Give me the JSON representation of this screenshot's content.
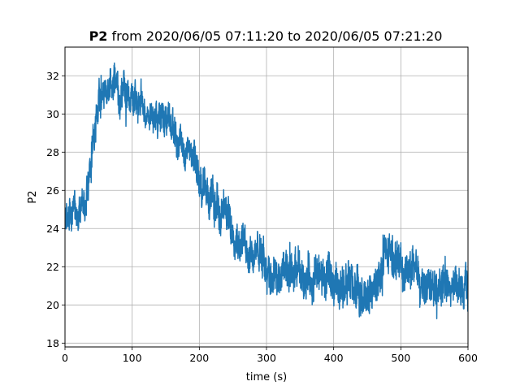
{
  "chart_data": {
    "type": "line",
    "title_bold": "P2",
    "title_rest": " from 2020/06/05 07:11:20 to 2020/06/05 07:21:20",
    "xlabel": "time (s)",
    "ylabel": "P2",
    "xlim": [
      0,
      600
    ],
    "ylim": [
      17.8,
      33.5
    ],
    "xticks": [
      0,
      100,
      200,
      300,
      400,
      500,
      600
    ],
    "yticks": [
      18,
      20,
      22,
      24,
      26,
      28,
      30,
      32
    ],
    "grid": true,
    "series": [
      {
        "color": "#1f77b4",
        "x": [
          0,
          10,
          20,
          30,
          40,
          50,
          60,
          70,
          75,
          80,
          90,
          100,
          110,
          120,
          130,
          140,
          150,
          160,
          170,
          180,
          190,
          200,
          210,
          220,
          230,
          240,
          250,
          260,
          270,
          280,
          290,
          300,
          310,
          320,
          330,
          340,
          350,
          360,
          370,
          380,
          390,
          400,
          410,
          420,
          430,
          440,
          450,
          460,
          470,
          480,
          490,
          500,
          510,
          520,
          530,
          540,
          550,
          560,
          570,
          580,
          590,
          600
        ],
        "y": [
          24.5,
          24.6,
          25.0,
          25.5,
          27.8,
          30.5,
          31.0,
          31.6,
          32.0,
          31.3,
          30.9,
          30.6,
          30.5,
          30.1,
          29.9,
          29.8,
          29.7,
          29.3,
          28.6,
          28.0,
          27.7,
          26.6,
          26.0,
          25.4,
          25.0,
          24.6,
          24.0,
          23.4,
          23.0,
          22.8,
          22.6,
          22.0,
          21.6,
          21.5,
          21.6,
          21.5,
          21.6,
          21.5,
          21.4,
          21.4,
          21.4,
          21.0,
          21.0,
          21.0,
          20.8,
          20.2,
          20.3,
          20.8,
          21.6,
          22.6,
          22.4,
          22.0,
          21.8,
          21.7,
          21.5,
          21.2,
          21.4,
          21.1,
          20.9,
          20.9,
          20.8,
          20.8
        ],
        "noise": [
          0.8,
          0.9,
          0.9,
          1.0,
          1.1,
          1.2,
          1.1,
          1.0,
          1.0,
          1.0,
          0.9,
          0.9,
          0.9,
          0.8,
          0.8,
          0.9,
          0.9,
          0.9,
          0.9,
          0.9,
          1.0,
          1.0,
          1.0,
          1.1,
          1.1,
          1.1,
          1.0,
          1.0,
          1.0,
          1.0,
          1.1,
          1.1,
          1.1,
          1.1,
          1.1,
          1.1,
          1.1,
          1.1,
          1.1,
          1.1,
          1.1,
          1.1,
          1.1,
          1.1,
          1.1,
          1.1,
          1.1,
          1.1,
          1.2,
          1.2,
          1.1,
          1.1,
          1.1,
          1.1,
          1.1,
          1.1,
          1.1,
          1.1,
          1.1,
          1.1,
          1.1,
          1.1
        ]
      }
    ]
  }
}
